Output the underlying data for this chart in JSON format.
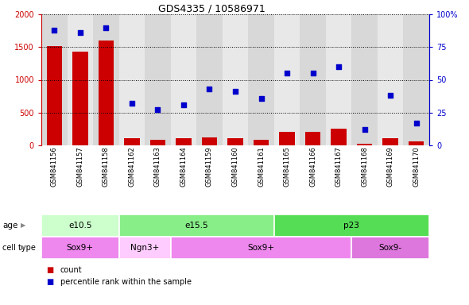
{
  "title": "GDS4335 / 10586971",
  "samples": [
    "GSM841156",
    "GSM841157",
    "GSM841158",
    "GSM841162",
    "GSM841163",
    "GSM841164",
    "GSM841159",
    "GSM841160",
    "GSM841161",
    "GSM841165",
    "GSM841166",
    "GSM841167",
    "GSM841168",
    "GSM841169",
    "GSM841170"
  ],
  "counts": [
    1520,
    1430,
    1600,
    110,
    80,
    110,
    120,
    110,
    90,
    210,
    210,
    255,
    30,
    115,
    55
  ],
  "percentiles": [
    88,
    86,
    90,
    32,
    27,
    31,
    43,
    41,
    36,
    55,
    55,
    60,
    12,
    38,
    17
  ],
  "ylim_left": [
    0,
    2000
  ],
  "ylim_right": [
    0,
    100
  ],
  "yticks_left": [
    0,
    500,
    1000,
    1500,
    2000
  ],
  "yticks_right": [
    0,
    25,
    50,
    75,
    100
  ],
  "age_groups": [
    {
      "label": "e10.5",
      "start": 0,
      "end": 3,
      "color": "#ccffcc"
    },
    {
      "label": "e15.5",
      "start": 3,
      "end": 9,
      "color": "#88ee88"
    },
    {
      "label": "p23",
      "start": 9,
      "end": 15,
      "color": "#55dd55"
    }
  ],
  "cell_groups": [
    {
      "label": "Sox9+",
      "start": 0,
      "end": 3,
      "color": "#ee88ee"
    },
    {
      "label": "Ngn3+",
      "start": 3,
      "end": 5,
      "color": "#ffccff"
    },
    {
      "label": "Sox9+",
      "start": 5,
      "end": 12,
      "color": "#ee88ee"
    },
    {
      "label": "Sox9-",
      "start": 12,
      "end": 15,
      "color": "#dd77dd"
    }
  ],
  "bar_color": "#cc0000",
  "scatter_color": "#0000cc",
  "background_color": "#ffffff",
  "legend_count_color": "#cc0000",
  "legend_pct_color": "#0000cc",
  "col_bg_even": "#d8d8d8",
  "col_bg_odd": "#e8e8e8"
}
